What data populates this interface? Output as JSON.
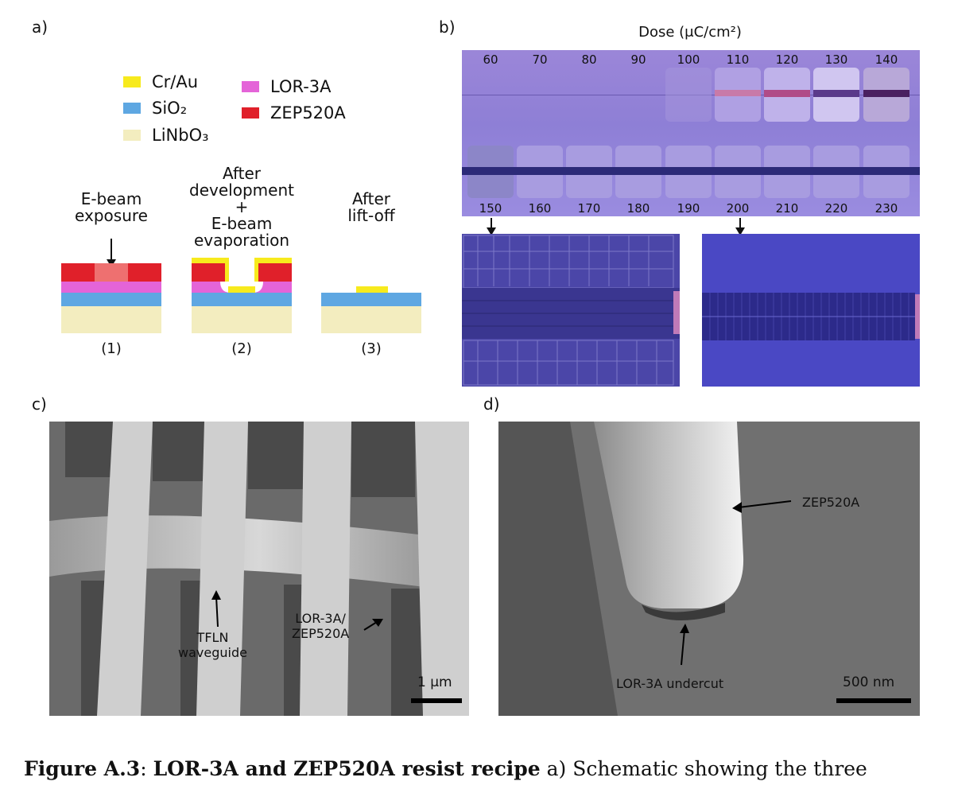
{
  "panels": {
    "a": "a)",
    "b": "b)",
    "c": "c)",
    "d": "d)"
  },
  "legend": [
    {
      "label": "Cr/Au",
      "color": "#f7ea1d"
    },
    {
      "label": "SiO₂",
      "color": "#5ea7e2"
    },
    {
      "label": "LiNbO₃",
      "color": "#f3edbf"
    },
    {
      "label": "LOR-3A",
      "color": "#e464d8"
    },
    {
      "label": "ZEP520A",
      "color": "#e0202a"
    }
  ],
  "steps": [
    {
      "title": "E-beam\nexposure",
      "number": "(1)"
    },
    {
      "title": "After\ndevelopment\n+\nE-beam\nevaporation",
      "number": "(2)"
    },
    {
      "title": "After\nlift-off",
      "number": "(3)"
    }
  ],
  "dose": {
    "title": "Dose (μC/cm²)",
    "top_row": [
      "60",
      "70",
      "80",
      "90",
      "100",
      "110",
      "120",
      "130",
      "140"
    ],
    "bottom_row": [
      "150",
      "160",
      "170",
      "180",
      "190",
      "200",
      "210",
      "220",
      "230"
    ]
  },
  "sem_c": {
    "label_waveguide": "TFLN\nwaveguide",
    "label_resist": "LOR-3A/\nZEP520A",
    "scalebar": "1 μm"
  },
  "sem_d": {
    "label_zep": "ZEP520A",
    "label_undercut": "LOR-3A undercut",
    "scalebar": "500 nm"
  },
  "caption": {
    "prefix": "Figure A.3",
    "colon": ": ",
    "title": "LOR-3A and ZEP520A resist recipe",
    "text": " a) Schematic showing the three"
  }
}
